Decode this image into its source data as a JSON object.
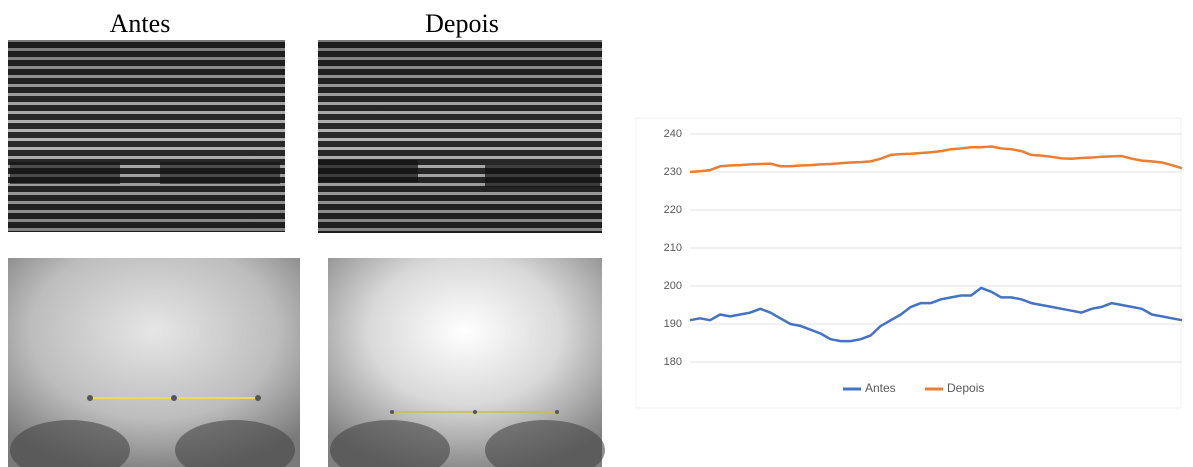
{
  "image_labels": [
    "Antes",
    "Depois"
  ],
  "chart_data": {
    "type": "line",
    "categories": [
      null,
      null,
      null,
      null,
      null,
      null,
      null,
      null,
      null,
      null,
      null,
      null,
      null,
      null,
      null,
      null,
      null,
      null,
      null,
      null,
      null,
      null,
      null,
      null,
      null,
      null,
      null,
      null,
      null,
      null,
      null,
      null,
      null,
      null,
      null,
      null,
      null,
      null,
      null,
      null,
      null,
      null,
      null,
      null,
      null,
      null,
      null,
      null,
      null,
      null
    ],
    "series": [
      {
        "name": "Antes",
        "color": "#4472c4",
        "values": [
          191,
          191.5,
          191,
          192.5,
          192,
          192.5,
          193,
          194,
          193,
          191.5,
          190,
          189.5,
          188.5,
          187.5,
          186,
          185.5,
          185.5,
          186,
          187,
          189.5,
          191,
          192.5,
          194.5,
          195.5,
          195.5,
          196.5,
          197,
          197.5,
          197.5,
          199.5,
          198.5,
          197,
          197,
          196.5,
          195.5,
          195,
          194.5,
          194,
          193.5,
          193,
          194,
          194.5,
          195.5,
          195,
          194.5,
          194,
          192.5,
          192,
          191.5,
          191
        ]
      },
      {
        "name": "Depois",
        "color": "#ed7d31",
        "values": [
          230,
          230.2,
          230.5,
          231.5,
          231.7,
          231.8,
          232,
          232.1,
          232.2,
          231.5,
          231.5,
          231.7,
          231.8,
          232,
          232.1,
          232.3,
          232.5,
          232.6,
          232.8,
          233.5,
          234.5,
          234.7,
          234.8,
          235,
          235.2,
          235.5,
          236,
          236.2,
          236.5,
          236.5,
          236.7,
          236.2,
          236,
          235.5,
          234.5,
          234.3,
          234,
          233.6,
          233.5,
          233.7,
          233.8,
          234,
          234.1,
          234.2,
          233.5,
          233,
          232.8,
          232.5,
          231.8,
          231
        ]
      }
    ],
    "ylim": [
      180,
      240
    ],
    "yticks": [
      180,
      190,
      200,
      210,
      220,
      230,
      240
    ],
    "grid": true,
    "legend": "bottom"
  }
}
